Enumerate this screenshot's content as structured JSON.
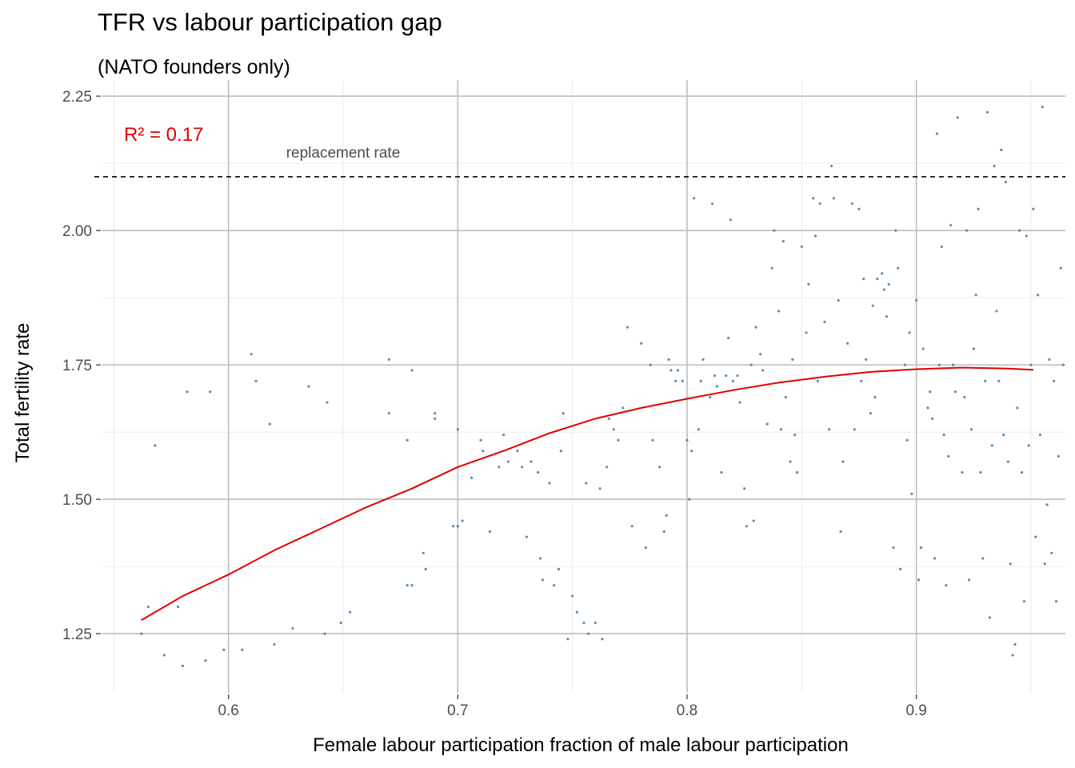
{
  "chart_data": {
    "type": "scatter",
    "title": "TFR vs labour participation gap",
    "subtitle": "(NATO founders only)",
    "xlabel": "Female labour participation fraction of male labour participation",
    "ylabel": "Total fertility rate",
    "xlim": [
      0.545,
      0.965
    ],
    "ylim": [
      1.14,
      2.28
    ],
    "x_ticks": [
      0.6,
      0.7,
      0.8,
      0.9
    ],
    "x_tick_labels": [
      "0.6",
      "0.7",
      "0.8",
      "0.9"
    ],
    "y_ticks": [
      1.25,
      1.5,
      1.75,
      2.0,
      2.25
    ],
    "y_tick_labels": [
      "1.25",
      "1.50",
      "1.75",
      "2.00",
      "2.25"
    ],
    "grid": true,
    "annotation_r2": "R² = 0.17",
    "replacement": {
      "y": 2.1,
      "label": "replacement rate"
    },
    "colors": {
      "points": "#4682b4",
      "trend": "#e00000",
      "replacement_line": "#000000",
      "r2_text": "#e00000",
      "replacement_text": "#999999"
    },
    "trend": {
      "x": [
        0.562,
        0.58,
        0.6,
        0.62,
        0.64,
        0.66,
        0.68,
        0.7,
        0.72,
        0.74,
        0.76,
        0.78,
        0.8,
        0.82,
        0.84,
        0.86,
        0.88,
        0.9,
        0.92,
        0.94,
        0.951
      ],
      "y": [
        1.275,
        1.32,
        1.36,
        1.405,
        1.445,
        1.485,
        1.52,
        1.56,
        1.59,
        1.623,
        1.65,
        1.67,
        1.687,
        1.703,
        1.717,
        1.728,
        1.737,
        1.742,
        1.745,
        1.743,
        1.741
      ]
    },
    "points": [
      [
        0.562,
        1.25
      ],
      [
        0.565,
        1.3
      ],
      [
        0.568,
        1.6
      ],
      [
        0.572,
        1.21
      ],
      [
        0.578,
        1.3
      ],
      [
        0.58,
        1.19
      ],
      [
        0.582,
        1.7
      ],
      [
        0.59,
        1.2
      ],
      [
        0.592,
        1.7
      ],
      [
        0.598,
        1.22
      ],
      [
        0.606,
        1.22
      ],
      [
        0.61,
        1.77
      ],
      [
        0.612,
        1.72
      ],
      [
        0.618,
        1.64
      ],
      [
        0.62,
        1.23
      ],
      [
        0.628,
        1.26
      ],
      [
        0.635,
        1.71
      ],
      [
        0.642,
        1.25
      ],
      [
        0.643,
        1.68
      ],
      [
        0.649,
        1.27
      ],
      [
        0.653,
        1.29
      ],
      [
        0.67,
        1.76
      ],
      [
        0.67,
        1.66
      ],
      [
        0.678,
        1.61
      ],
      [
        0.678,
        1.34
      ],
      [
        0.68,
        1.74
      ],
      [
        0.68,
        1.34
      ],
      [
        0.685,
        1.4
      ],
      [
        0.686,
        1.37
      ],
      [
        0.69,
        1.66
      ],
      [
        0.69,
        1.65
      ],
      [
        0.698,
        1.45
      ],
      [
        0.7,
        1.63
      ],
      [
        0.7,
        1.45
      ],
      [
        0.702,
        1.46
      ],
      [
        0.706,
        1.54
      ],
      [
        0.71,
        1.61
      ],
      [
        0.711,
        1.59
      ],
      [
        0.714,
        1.44
      ],
      [
        0.718,
        1.56
      ],
      [
        0.72,
        1.62
      ],
      [
        0.722,
        1.57
      ],
      [
        0.726,
        1.59
      ],
      [
        0.728,
        1.56
      ],
      [
        0.73,
        1.43
      ],
      [
        0.732,
        1.57
      ],
      [
        0.735,
        1.55
      ],
      [
        0.736,
        1.39
      ],
      [
        0.737,
        1.35
      ],
      [
        0.74,
        1.53
      ],
      [
        0.742,
        1.34
      ],
      [
        0.744,
        1.37
      ],
      [
        0.745,
        1.59
      ],
      [
        0.746,
        1.66
      ],
      [
        0.748,
        1.24
      ],
      [
        0.75,
        1.32
      ],
      [
        0.752,
        1.29
      ],
      [
        0.755,
        1.27
      ],
      [
        0.756,
        1.53
      ],
      [
        0.757,
        1.25
      ],
      [
        0.76,
        1.27
      ],
      [
        0.762,
        1.52
      ],
      [
        0.763,
        1.24
      ],
      [
        0.765,
        1.56
      ],
      [
        0.766,
        1.65
      ],
      [
        0.768,
        1.63
      ],
      [
        0.77,
        1.61
      ],
      [
        0.772,
        1.67
      ],
      [
        0.774,
        1.82
      ],
      [
        0.776,
        1.45
      ],
      [
        0.78,
        1.79
      ],
      [
        0.782,
        1.41
      ],
      [
        0.784,
        1.75
      ],
      [
        0.785,
        1.61
      ],
      [
        0.788,
        1.56
      ],
      [
        0.79,
        1.44
      ],
      [
        0.791,
        1.47
      ],
      [
        0.792,
        1.76
      ],
      [
        0.793,
        1.74
      ],
      [
        0.795,
        1.72
      ],
      [
        0.796,
        1.74
      ],
      [
        0.798,
        1.72
      ],
      [
        0.8,
        1.61
      ],
      [
        0.801,
        1.5
      ],
      [
        0.802,
        1.59
      ],
      [
        0.803,
        2.06
      ],
      [
        0.805,
        1.63
      ],
      [
        0.806,
        1.72
      ],
      [
        0.807,
        1.76
      ],
      [
        0.81,
        1.69
      ],
      [
        0.811,
        2.05
      ],
      [
        0.812,
        1.73
      ],
      [
        0.813,
        1.71
      ],
      [
        0.815,
        1.55
      ],
      [
        0.817,
        1.73
      ],
      [
        0.818,
        1.8
      ],
      [
        0.819,
        2.02
      ],
      [
        0.82,
        1.72
      ],
      [
        0.822,
        1.73
      ],
      [
        0.823,
        1.68
      ],
      [
        0.825,
        1.52
      ],
      [
        0.826,
        1.45
      ],
      [
        0.828,
        1.75
      ],
      [
        0.829,
        1.46
      ],
      [
        0.83,
        1.82
      ],
      [
        0.832,
        1.77
      ],
      [
        0.833,
        1.74
      ],
      [
        0.835,
        1.64
      ],
      [
        0.837,
        1.93
      ],
      [
        0.838,
        2.0
      ],
      [
        0.84,
        1.85
      ],
      [
        0.841,
        1.63
      ],
      [
        0.842,
        1.98
      ],
      [
        0.843,
        1.69
      ],
      [
        0.845,
        1.57
      ],
      [
        0.846,
        1.76
      ],
      [
        0.847,
        1.62
      ],
      [
        0.848,
        1.55
      ],
      [
        0.85,
        1.97
      ],
      [
        0.852,
        1.81
      ],
      [
        0.853,
        1.9
      ],
      [
        0.855,
        2.06
      ],
      [
        0.856,
        1.99
      ],
      [
        0.857,
        1.72
      ],
      [
        0.858,
        2.05
      ],
      [
        0.86,
        1.83
      ],
      [
        0.862,
        1.63
      ],
      [
        0.863,
        2.12
      ],
      [
        0.864,
        2.06
      ],
      [
        0.866,
        1.87
      ],
      [
        0.867,
        1.44
      ],
      [
        0.868,
        1.57
      ],
      [
        0.87,
        1.79
      ],
      [
        0.872,
        2.05
      ],
      [
        0.873,
        1.63
      ],
      [
        0.875,
        2.04
      ],
      [
        0.876,
        1.72
      ],
      [
        0.877,
        1.91
      ],
      [
        0.878,
        1.76
      ],
      [
        0.88,
        1.66
      ],
      [
        0.881,
        1.86
      ],
      [
        0.882,
        1.69
      ],
      [
        0.883,
        1.91
      ],
      [
        0.885,
        1.92
      ],
      [
        0.886,
        1.89
      ],
      [
        0.887,
        1.84
      ],
      [
        0.888,
        1.9
      ],
      [
        0.89,
        1.41
      ],
      [
        0.891,
        2.0
      ],
      [
        0.892,
        1.93
      ],
      [
        0.893,
        1.37
      ],
      [
        0.895,
        1.75
      ],
      [
        0.896,
        1.61
      ],
      [
        0.897,
        1.81
      ],
      [
        0.898,
        1.51
      ],
      [
        0.9,
        1.87
      ],
      [
        0.901,
        1.35
      ],
      [
        0.902,
        1.41
      ],
      [
        0.903,
        1.78
      ],
      [
        0.905,
        1.67
      ],
      [
        0.906,
        1.7
      ],
      [
        0.907,
        1.65
      ],
      [
        0.908,
        1.39
      ],
      [
        0.909,
        2.18
      ],
      [
        0.91,
        1.75
      ],
      [
        0.911,
        1.97
      ],
      [
        0.912,
        1.62
      ],
      [
        0.913,
        1.34
      ],
      [
        0.914,
        1.58
      ],
      [
        0.915,
        2.01
      ],
      [
        0.916,
        1.75
      ],
      [
        0.917,
        1.7
      ],
      [
        0.918,
        2.21
      ],
      [
        0.92,
        1.55
      ],
      [
        0.921,
        1.69
      ],
      [
        0.922,
        2.0
      ],
      [
        0.923,
        1.35
      ],
      [
        0.924,
        1.63
      ],
      [
        0.925,
        1.78
      ],
      [
        0.926,
        1.88
      ],
      [
        0.927,
        2.04
      ],
      [
        0.928,
        1.55
      ],
      [
        0.929,
        1.39
      ],
      [
        0.93,
        1.72
      ],
      [
        0.931,
        2.22
      ],
      [
        0.932,
        1.28
      ],
      [
        0.933,
        1.6
      ],
      [
        0.934,
        2.12
      ],
      [
        0.935,
        1.85
      ],
      [
        0.936,
        1.72
      ],
      [
        0.937,
        2.15
      ],
      [
        0.938,
        1.62
      ],
      [
        0.939,
        2.09
      ],
      [
        0.94,
        1.57
      ],
      [
        0.941,
        1.38
      ],
      [
        0.942,
        1.21
      ],
      [
        0.943,
        1.23
      ],
      [
        0.944,
        1.67
      ],
      [
        0.945,
        2.0
      ],
      [
        0.946,
        1.55
      ],
      [
        0.947,
        1.31
      ],
      [
        0.948,
        1.99
      ],
      [
        0.949,
        1.6
      ],
      [
        0.95,
        1.75
      ],
      [
        0.951,
        2.04
      ],
      [
        0.952,
        1.43
      ],
      [
        0.953,
        1.88
      ],
      [
        0.954,
        1.62
      ],
      [
        0.955,
        2.23
      ],
      [
        0.956,
        1.38
      ],
      [
        0.957,
        1.49
      ],
      [
        0.958,
        1.76
      ],
      [
        0.959,
        1.4
      ],
      [
        0.96,
        1.72
      ],
      [
        0.961,
        1.31
      ],
      [
        0.962,
        1.58
      ],
      [
        0.963,
        1.93
      ],
      [
        0.964,
        1.75
      ]
    ]
  }
}
